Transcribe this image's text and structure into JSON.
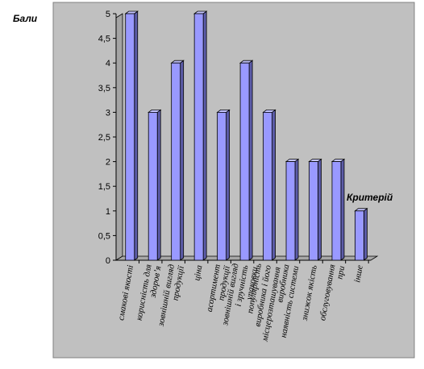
{
  "chart_data": {
    "type": "bar",
    "title": "",
    "xlabel": "Критерій",
    "ylabel": "Бали",
    "ylim": [
      0,
      5
    ],
    "yticks": [
      "0",
      "0,5",
      "1",
      "1,5",
      "2",
      "2,5",
      "3",
      "3,5",
      "4",
      "4,5",
      "5"
    ],
    "grid": false,
    "legend": "none",
    "categories": [
      "смакові якості",
      "корисність для здоров’я",
      "зовнішній вигляд продукції",
      "ціна",
      "асортимент продукції",
      "зовнішній вигляд і зручність упаковки",
      "популярність виробника і його місцерозташування",
      "виробника наявність системи",
      "знижок якість",
      "обслуговування при",
      "інше"
    ],
    "values": [
      5,
      3,
      4,
      5,
      3,
      4,
      3,
      2,
      2,
      2,
      1
    ],
    "colors": {
      "plot_area": "#c0c0c0",
      "bar_front": "#9999ff",
      "bar_side": "#5c5ca8",
      "bar_top": "#c4c4ff",
      "wall_left": "#a4a4a4",
      "floor": "#a8a8a8",
      "border": "#808080"
    }
  }
}
